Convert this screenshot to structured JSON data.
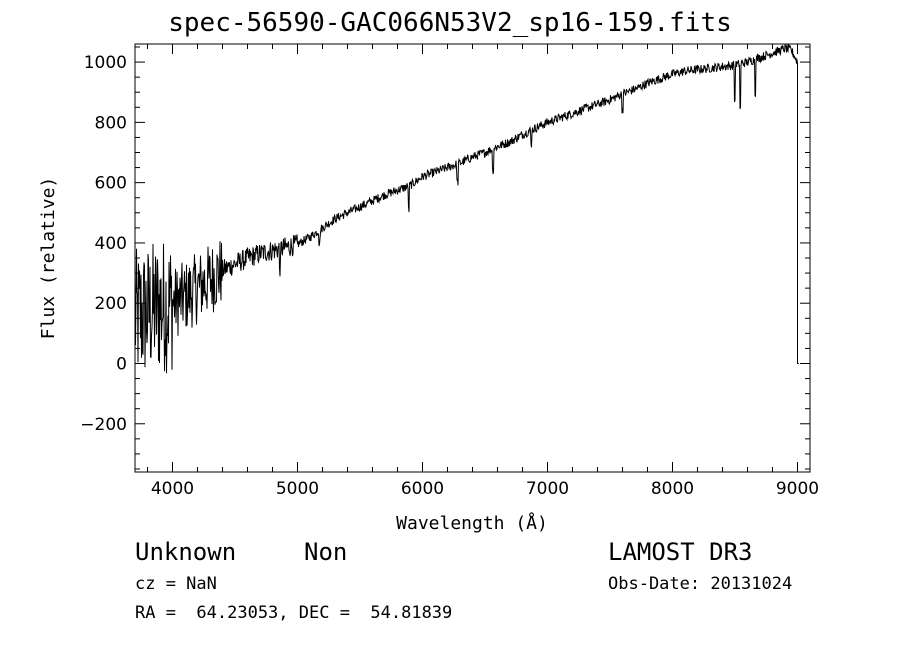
{
  "chart_data": {
    "type": "line",
    "title": "spec-56590-GAC066N53V2_sp16-159.fits",
    "xlabel": "Wavelength (Å)",
    "ylabel": "Flux (relative)",
    "xlim": [
      3700,
      9100
    ],
    "ylim": [
      -360,
      1060
    ],
    "x_ticks": [
      4000,
      5000,
      6000,
      7000,
      8000,
      9000
    ],
    "y_ticks": [
      -200,
      0,
      200,
      400,
      600,
      800,
      1000
    ],
    "x_tick_labels": [
      "4000",
      "5000",
      "6000",
      "7000",
      "8000",
      "9000"
    ],
    "y_tick_labels": [
      "−200",
      "0",
      "200",
      "400",
      "600",
      "800",
      "1000"
    ],
    "grid": false,
    "series": [
      {
        "x": [
          3700,
          3750,
          3800,
          3850,
          3900,
          3950,
          4000,
          4100,
          4200,
          4300,
          4400,
          4500,
          4600,
          4700,
          4800,
          4900,
          5000,
          5100,
          5200,
          5300,
          5400,
          5500,
          5600,
          5700,
          5800,
          5900,
          6000,
          6100,
          6200,
          6300,
          6400,
          6500,
          6600,
          6700,
          6800,
          6900,
          7000,
          7100,
          7200,
          7300,
          7400,
          7500,
          7600,
          7700,
          7800,
          7900,
          8000,
          8100,
          8200,
          8300,
          8400,
          8500,
          8600,
          8700,
          8800,
          8900,
          8950,
          9000
        ],
        "y": [
          150,
          160,
          170,
          180,
          190,
          195,
          200,
          220,
          250,
          280,
          310,
          330,
          350,
          365,
          375,
          385,
          395,
          420,
          450,
          480,
          500,
          520,
          540,
          560,
          575,
          590,
          620,
          635,
          650,
          665,
          685,
          700,
          720,
          735,
          760,
          780,
          800,
          815,
          830,
          845,
          860,
          875,
          895,
          910,
          930,
          945,
          960,
          970,
          975,
          980,
          985,
          990,
          1000,
          1015,
          1030,
          1045,
          1040,
          1000
        ]
      }
    ]
  },
  "info": {
    "class": "Unknown",
    "subclass": "Non",
    "survey": "LAMOST DR3",
    "cz": "cz = NaN",
    "obs_date": "Obs-Date: 20131024",
    "coords": "RA =  64.23053, DEC =  54.81839"
  }
}
